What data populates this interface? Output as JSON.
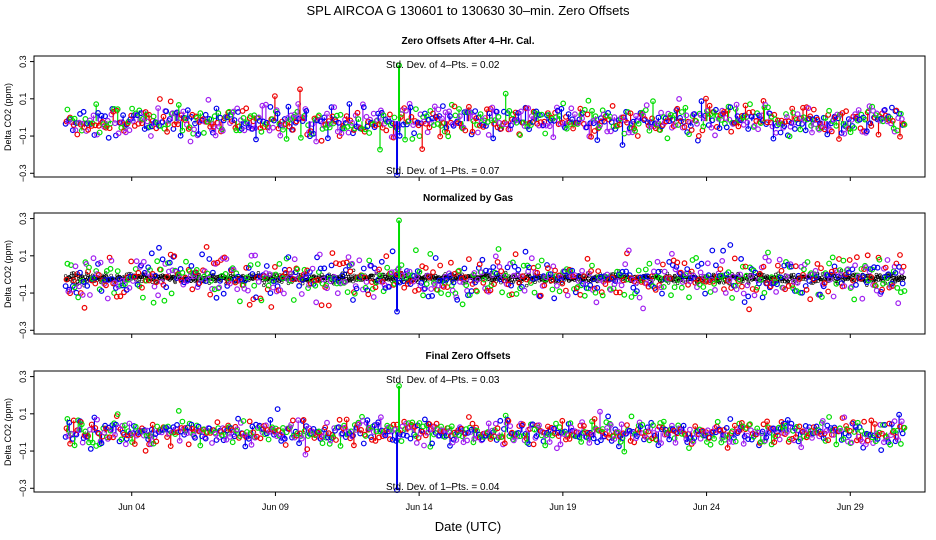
{
  "chart_data": {
    "type": "scatter",
    "title": "SPL   AIRCOA G   130601 to 130630   30–min. Zero Offsets",
    "xlabel": "Date (UTC)",
    "date_range": "130601 to 130630",
    "x_ticks": [
      "Jun 04",
      "Jun 09",
      "Jun 14",
      "Jun 19",
      "Jun 24",
      "Jun 29"
    ],
    "x_tick_days": [
      4,
      9,
      14,
      19,
      24,
      29
    ],
    "x_range_days": [
      0.6,
      31.6
    ],
    "data_day_range": [
      1.7,
      30.9
    ],
    "series_colors": {
      "blue": "#0000ee",
      "red": "#ee0000",
      "green": "#00dd00",
      "purple": "#a020f0",
      "black": "#000000"
    },
    "panels": [
      {
        "title": "Zero Offsets After 4–Hr. Cal.",
        "ylabel": "Delta CO2 (ppm)",
        "ylim": [
          -0.32,
          0.33
        ],
        "yticks": [
          -0.3,
          -0.1,
          0.1,
          0.3
        ],
        "ytick_labels": [
          "−0.3",
          "−0.1",
          "0.1",
          "0.3"
        ],
        "noise_sd": 0.045,
        "mean": -0.02,
        "spike_day": 13.3,
        "spike_values": {
          "green_max": 0.28,
          "blue_min": -0.31
        },
        "stats": [
          "Std. Dev. of 4–Pts. =  0.02",
          "Std. Dev. of 1–Pts. =  0.07"
        ]
      },
      {
        "title": "Normalized by Gas",
        "ylabel": "Delta CO2 (ppm)",
        "ylim": [
          -0.32,
          0.33
        ],
        "yticks": [
          -0.3,
          -0.1,
          0.1,
          0.3
        ],
        "ytick_labels": [
          "−0.3",
          "−0.1",
          "0.1",
          "0.3"
        ],
        "noise_sd": 0.06,
        "mean": -0.02,
        "spike_day": 13.3,
        "spike_values": {
          "green_max": 0.29,
          "blue_min": -0.2
        },
        "stats": []
      },
      {
        "title": "Final Zero Offsets",
        "ylabel": "Delta CO2 (ppm)",
        "ylim": [
          -0.32,
          0.33
        ],
        "yticks": [
          -0.3,
          -0.1,
          0.1,
          0.3
        ],
        "ytick_labels": [
          "−0.3",
          "−0.1",
          "0.1",
          "0.3"
        ],
        "noise_sd": 0.035,
        "mean": 0.0,
        "spike_day": 13.3,
        "spike_values": {
          "green_max": 0.25,
          "blue_min": -0.31
        },
        "stats": [
          "Std. Dev. of 4–Pts. =  0.03",
          "Std. Dev. of 1–Pts. =  0.04"
        ]
      }
    ]
  }
}
